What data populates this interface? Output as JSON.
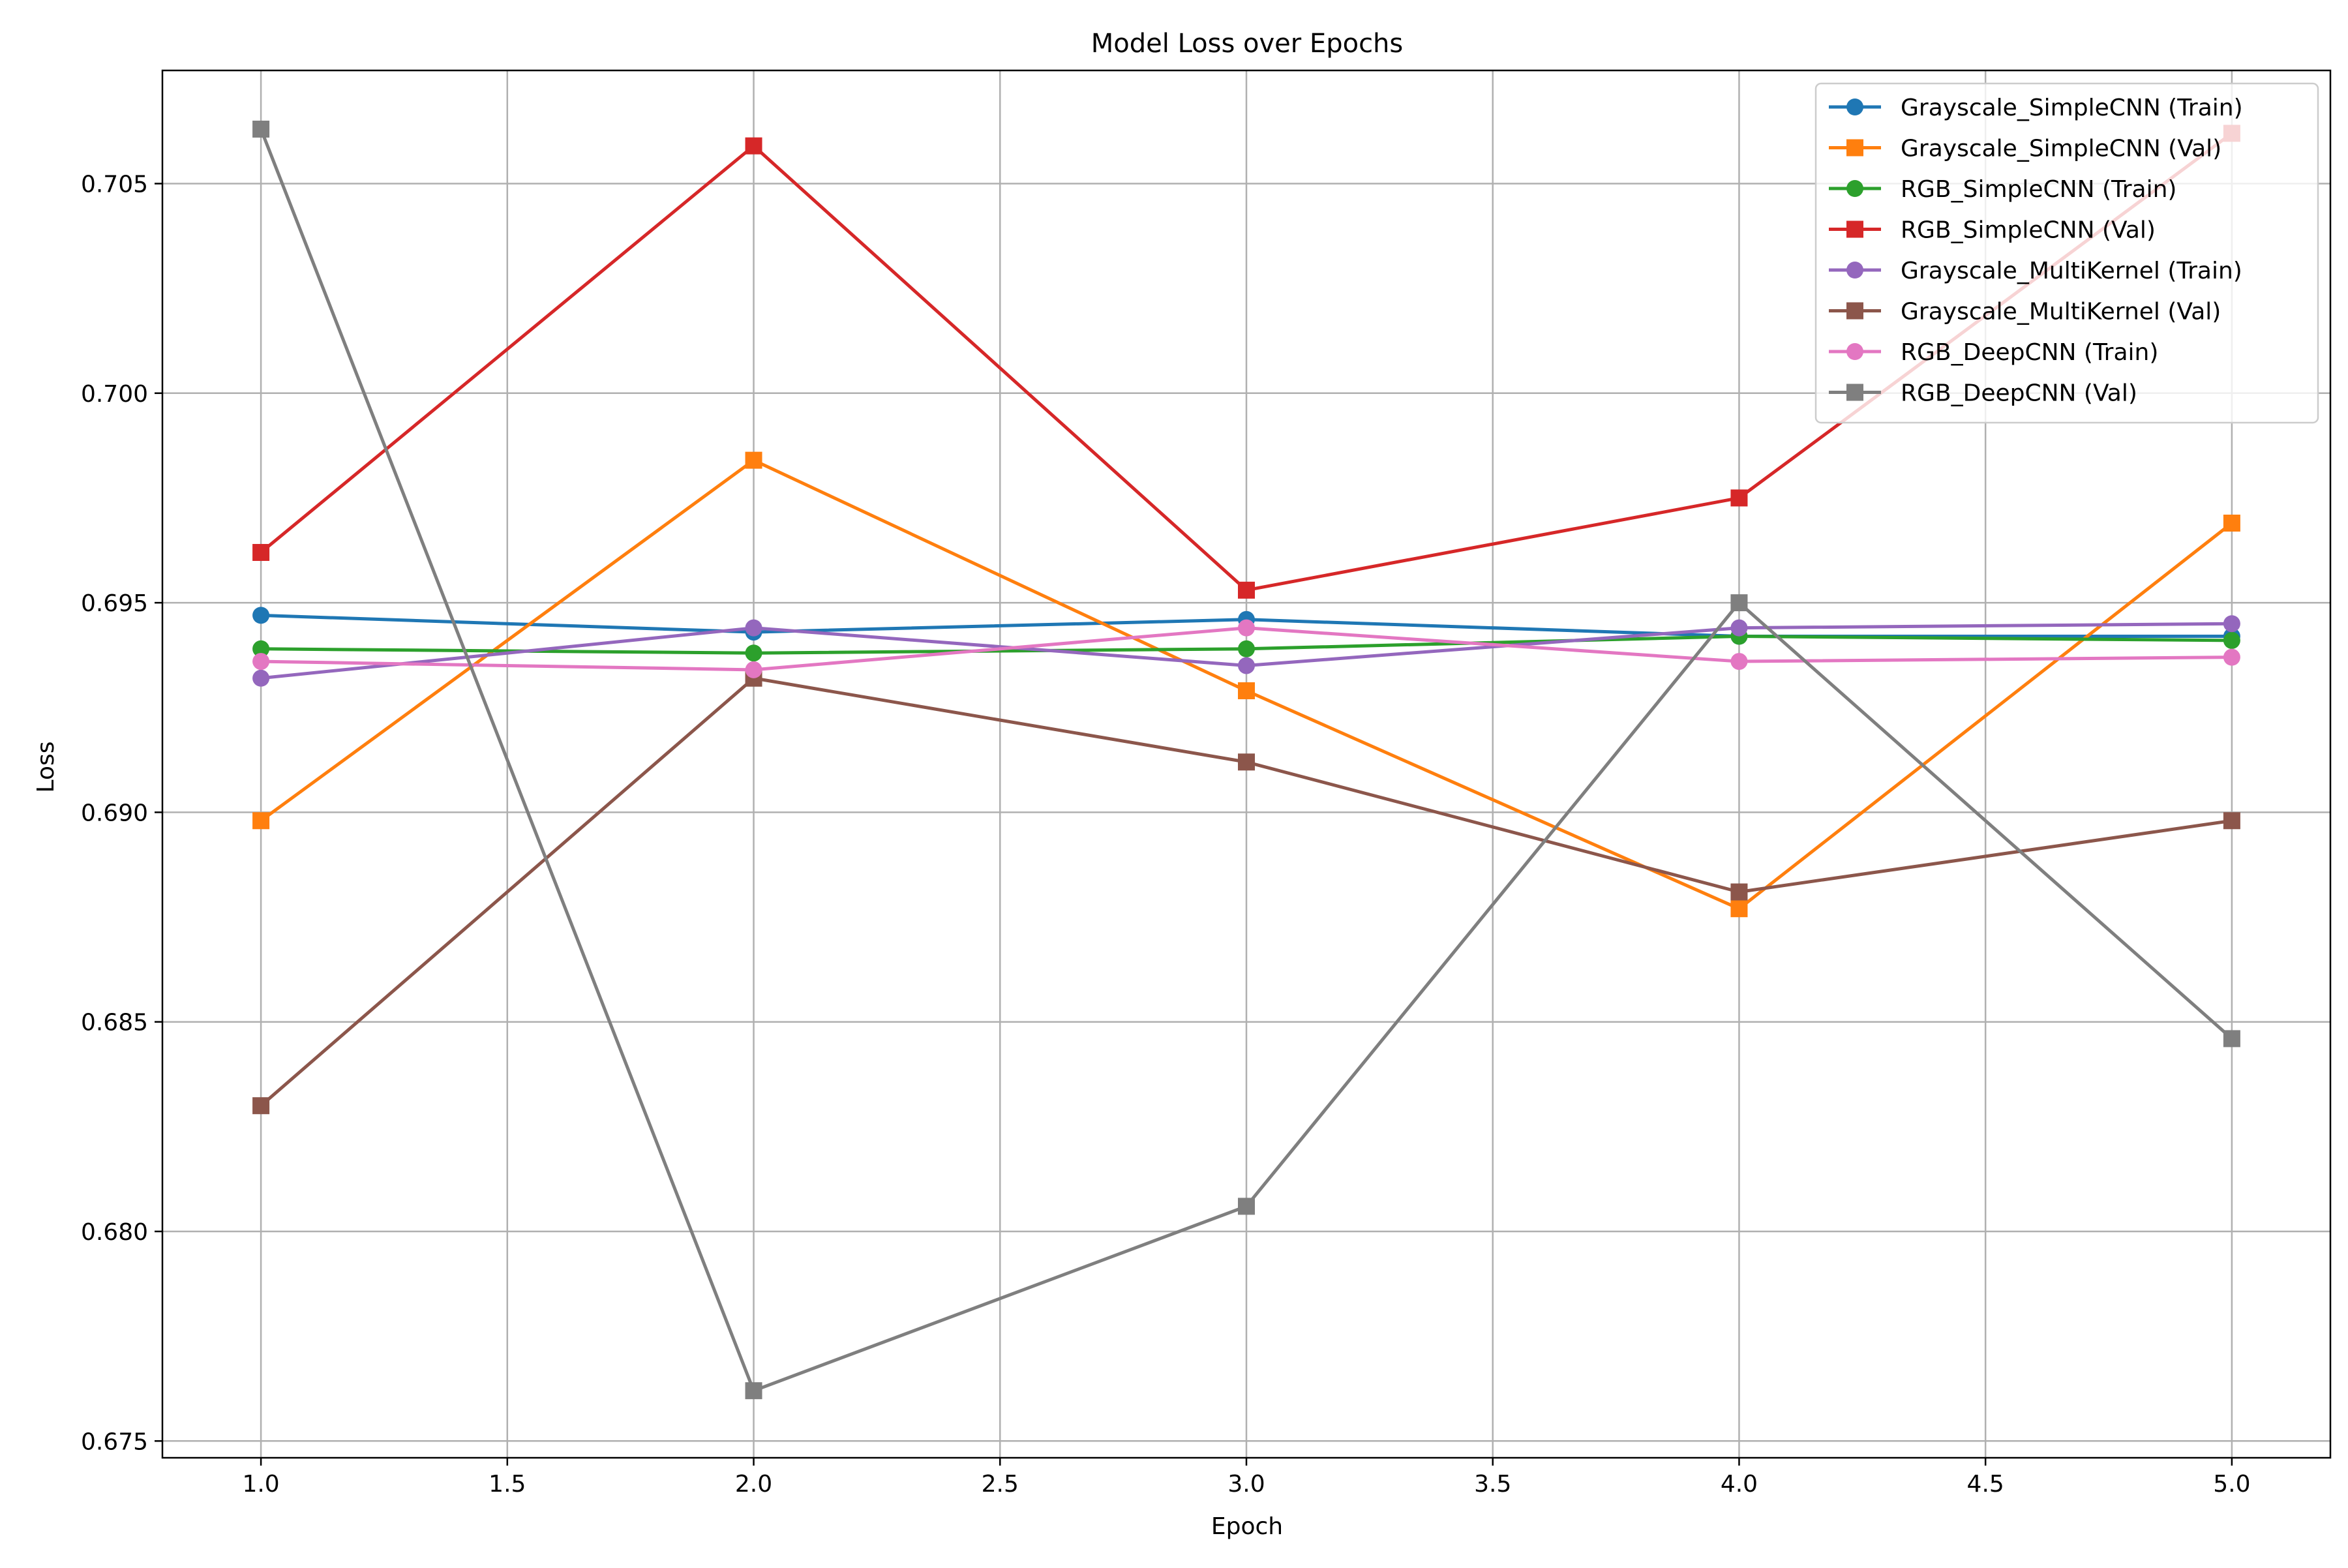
{
  "chart_data": {
    "type": "line",
    "title": "Model Loss over Epochs",
    "xlabel": "Epoch",
    "ylabel": "Loss",
    "xlim": [
      0.8,
      5.2
    ],
    "ylim": [
      0.6746,
      0.7077
    ],
    "xticks": [
      1.0,
      1.5,
      2.0,
      2.5,
      3.0,
      3.5,
      4.0,
      4.5,
      5.0
    ],
    "xtick_labels": [
      "1.0",
      "1.5",
      "2.0",
      "2.5",
      "3.0",
      "3.5",
      "4.0",
      "4.5",
      "5.0"
    ],
    "yticks": [
      0.675,
      0.68,
      0.685,
      0.69,
      0.695,
      0.7,
      0.705
    ],
    "ytick_labels": [
      "0.675",
      "0.680",
      "0.685",
      "0.690",
      "0.695",
      "0.700",
      "0.705"
    ],
    "grid": true,
    "legend_position": "top-right",
    "x": [
      1,
      2,
      3,
      4,
      5
    ],
    "series": [
      {
        "name": "Grayscale_SimpleCNN (Train)",
        "color": "#1f77b4",
        "marker": "circle",
        "values": [
          0.6947,
          0.6943,
          0.6946,
          0.6942,
          0.6942
        ]
      },
      {
        "name": "Grayscale_SimpleCNN (Val)",
        "color": "#ff7f0e",
        "marker": "square",
        "values": [
          0.6898,
          0.6984,
          0.6929,
          0.6877,
          0.6969
        ]
      },
      {
        "name": "RGB_SimpleCNN (Train)",
        "color": "#2ca02c",
        "marker": "circle",
        "values": [
          0.6939,
          0.6938,
          0.6939,
          0.6942,
          0.6941
        ]
      },
      {
        "name": "RGB_SimpleCNN (Val)",
        "color": "#d62728",
        "marker": "square",
        "values": [
          0.6962,
          0.7059,
          0.6953,
          0.6975,
          0.7062
        ]
      },
      {
        "name": "Grayscale_MultiKernel (Train)",
        "color": "#9467bd",
        "marker": "circle",
        "values": [
          0.6932,
          0.6944,
          0.6935,
          0.6944,
          0.6945
        ]
      },
      {
        "name": "Grayscale_MultiKernel (Val)",
        "color": "#8c564b",
        "marker": "square",
        "values": [
          0.683,
          0.6932,
          0.6912,
          0.6881,
          0.6898
        ]
      },
      {
        "name": "RGB_DeepCNN (Train)",
        "color": "#e377c2",
        "marker": "circle",
        "values": [
          0.6936,
          0.6934,
          0.6944,
          0.6936,
          0.6937
        ]
      },
      {
        "name": "RGB_DeepCNN (Val)",
        "color": "#7f7f7f",
        "marker": "square",
        "values": [
          0.7063,
          0.6762,
          0.6806,
          0.695,
          0.6846
        ]
      }
    ]
  }
}
